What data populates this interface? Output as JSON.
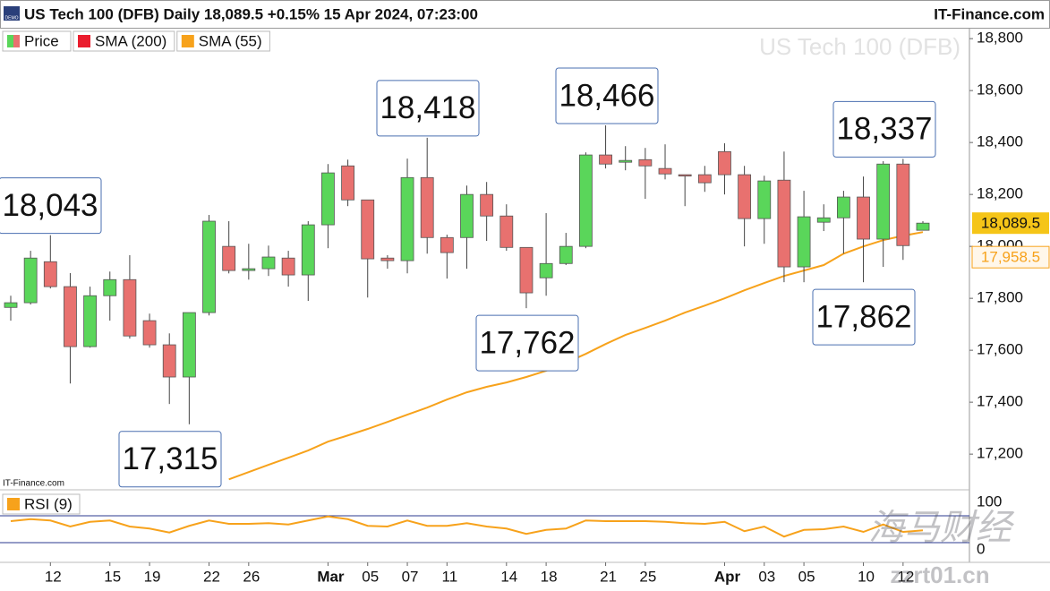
{
  "chart_data": {
    "type": "candlestick",
    "title": "US Tech 100 (DFB) Daily 18,089.5 +0.15% 15 Apr 2024, 07:23:00",
    "source": "IT-Finance.com",
    "badge": "DEMO",
    "watermark_title": "US Tech 100 (DFB)",
    "panel_credit": "IT-Finance.com",
    "categories": [
      null,
      null,
      "12",
      null,
      null,
      "15",
      null,
      "19",
      null,
      null,
      "22",
      null,
      "26",
      null,
      null,
      null,
      "Mar",
      null,
      "05",
      null,
      "07",
      null,
      "11",
      null,
      null,
      "14",
      null,
      "18",
      null,
      null,
      "21",
      null,
      "25",
      null,
      null,
      null,
      "Apr",
      null,
      "03",
      null,
      "05",
      null,
      null,
      "10",
      null,
      "12",
      null
    ],
    "open": [
      17765,
      17783,
      17941,
      17845,
      17614,
      17810,
      17872,
      17714,
      17621,
      17497,
      17745,
      18000,
      17907,
      17914,
      17955,
      17890,
      18083,
      18310,
      18179,
      17955,
      17945,
      18265,
      18034,
      18034,
      18200,
      18117,
      17996,
      17879,
      17934,
      18000,
      18352,
      18324,
      18334,
      18300,
      18276,
      18276,
      18365,
      18276,
      18107,
      18255,
      17921,
      18093,
      18110,
      18190,
      18028,
      18317,
      18062
    ],
    "high": [
      17810,
      17983,
      18043,
      17897,
      17845,
      17903,
      17966,
      17741,
      17665,
      17745,
      18121,
      18097,
      18010,
      18003,
      17983,
      18097,
      18317,
      18334,
      18179,
      17966,
      18338,
      18418,
      18045,
      18234,
      18248,
      18162,
      17996,
      18128,
      18052,
      18362,
      18466,
      18386,
      18379,
      18393,
      18276,
      18310,
      18397,
      18310,
      18272,
      18365,
      18214,
      18162,
      18214,
      18269,
      18328,
      18337,
      18097
    ],
    "low": [
      17714,
      17776,
      17838,
      17472,
      17610,
      17714,
      17645,
      17610,
      17393,
      17315,
      17734,
      17896,
      17872,
      17886,
      17845,
      17790,
      17993,
      18155,
      17803,
      17914,
      17896,
      17972,
      17876,
      17914,
      18021,
      17983,
      17762,
      17810,
      17928,
      17993,
      18300,
      18293,
      18183,
      18258,
      18155,
      18210,
      18200,
      18000,
      18010,
      17862,
      17862,
      18059,
      17972,
      17862,
      17921,
      17948,
      18062
    ],
    "close": [
      17783,
      17955,
      17845,
      17614,
      17810,
      17872,
      17655,
      17621,
      17497,
      17745,
      18097,
      17907,
      17914,
      17959,
      17890,
      18083,
      18283,
      18179,
      17952,
      17945,
      18265,
      18034,
      17976,
      18200,
      18117,
      17996,
      17821,
      17934,
      18000,
      18352,
      18317,
      18331,
      18310,
      18279,
      18272,
      18245,
      18276,
      18107,
      18252,
      17921,
      18114,
      18110,
      18190,
      18028,
      18317,
      18003,
      18089.5
    ],
    "up_color": "#5ad65a",
    "down_color": "#e8716f",
    "series": [
      {
        "name": "Price"
      },
      {
        "name": "SMA (200)",
        "color": "#ea1c2d"
      },
      {
        "name": "SMA (55)",
        "color": "#f7a21b",
        "values": [
          null,
          null,
          null,
          null,
          null,
          null,
          null,
          null,
          null,
          null,
          null,
          17103,
          17131,
          17159,
          17186,
          17214,
          17248,
          17272,
          17297,
          17324,
          17352,
          17379,
          17410,
          17438,
          17459,
          17476,
          17497,
          17521,
          17552,
          17586,
          17624,
          17659,
          17686,
          17714,
          17745,
          17772,
          17800,
          17831,
          17859,
          17886,
          17907,
          17928,
          17972,
          18000,
          18024,
          18041,
          18055
        ]
      }
    ],
    "ylim": [
      17066,
      18835
    ],
    "yticks": [
      {
        "value": 17200,
        "label": "17,200"
      },
      {
        "value": 17400,
        "label": "17,400"
      },
      {
        "value": 17600,
        "label": "17,600"
      },
      {
        "value": 17800,
        "label": "17,800"
      },
      {
        "value": 18000,
        "label": "18,000"
      },
      {
        "value": 18200,
        "label": "18,200"
      },
      {
        "value": 18400,
        "label": "18,400"
      },
      {
        "value": 18600,
        "label": "18,600"
      },
      {
        "value": 18800,
        "label": "18,800"
      }
    ],
    "grid": false,
    "last_price": {
      "value": 18089.5,
      "label": "18,089.5",
      "color": "#f5c518"
    },
    "sma_label": {
      "value": 17958.5,
      "label": "17,958.5"
    },
    "annotations": [
      {
        "value": 18043,
        "label": "18,043"
      },
      {
        "value": 18418,
        "label": "18,418"
      },
      {
        "value": 18466,
        "label": "18,466"
      },
      {
        "value": 18337,
        "label": "18,337"
      },
      {
        "value": 17315,
        "label": "17,315"
      },
      {
        "value": 17762,
        "label": "17,762"
      },
      {
        "value": 17862,
        "label": "17,862"
      }
    ],
    "rsi": {
      "name": "RSI (9)",
      "color": "#f7a21b",
      "values": [
        62,
        65,
        63,
        54,
        61,
        63,
        54,
        51,
        45,
        55,
        63,
        58,
        58,
        59,
        57,
        63,
        69,
        65,
        55,
        54,
        63,
        55,
        55,
        59,
        54,
        51,
        43,
        49,
        51,
        63,
        62,
        62,
        62,
        61,
        59,
        58,
        61,
        47,
        54,
        39,
        49,
        50,
        54,
        46,
        57,
        46,
        48.3
      ],
      "ylim": [
        0,
        100
      ],
      "yticks": [
        100,
        0
      ],
      "levels": [
        70,
        30
      ],
      "level_color": "#2b3a8f"
    },
    "watermark": [
      "海马财经",
      "zzrt01.cn"
    ]
  }
}
